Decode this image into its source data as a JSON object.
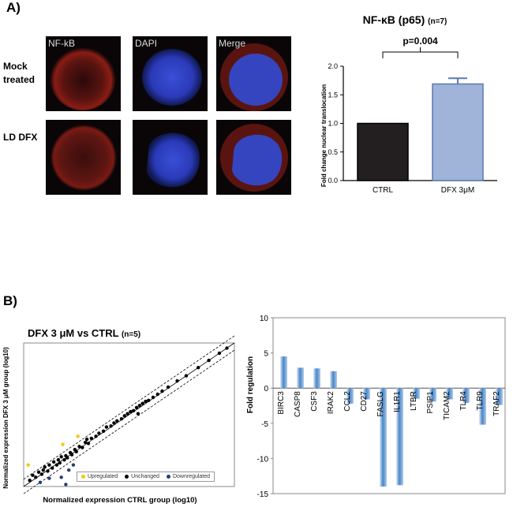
{
  "panel_a": {
    "label": "A)",
    "row_labels": [
      "Mock\ntreated",
      "LD DFX"
    ],
    "column_labels": [
      "NF-kB",
      "DAPI",
      "Merge"
    ]
  },
  "panel_b": {
    "label": "B)"
  },
  "colors": {
    "ctrl_bar": "#231f20",
    "dfx_bar": "#9fb4d8",
    "yellow": "#f5c518",
    "black": "#000000",
    "navy": "#283a7a",
    "blue_bar": "#4a86c8"
  },
  "chart_data": [
    {
      "type": "bar",
      "title": "NF-κB (p65)",
      "subtitle": "(n=7)",
      "categories": [
        "CTRL",
        "DFX 3μM"
      ],
      "values": [
        1.0,
        1.69
      ],
      "error": [
        0,
        0.1
      ],
      "ylabel": "Fold change nuclear translocation",
      "ylim": [
        0,
        2.0
      ],
      "yticks": [
        "0.0",
        "0.5",
        "1.0",
        "1.5",
        "2.0"
      ],
      "annotation": "p=0.004"
    },
    {
      "type": "scatter",
      "title": "DFX 3 μM vs CTRL",
      "subtitle": "(n=5)",
      "xlabel": "Normalized expression CTRL group (log10)",
      "ylabel": "Normalized expression DFX 3 μM group (log10)",
      "xlim": [
        -7,
        0
      ],
      "ylim": [
        -7,
        0
      ],
      "legend": [
        "Upregulated",
        "Unchanged",
        "Downregulated"
      ],
      "series": [
        {
          "name": "Upregulated",
          "points": [
            [
              -6.85,
              -5.95
            ],
            [
              -5.7,
              -4.95
            ],
            [
              -5.2,
              -4.55
            ]
          ]
        },
        {
          "name": "Unchanged",
          "points": [
            [
              -6.8,
              -6.7
            ],
            [
              -6.7,
              -6.45
            ],
            [
              -6.6,
              -6.55
            ],
            [
              -6.5,
              -6.3
            ],
            [
              -6.4,
              -6.4
            ],
            [
              -6.35,
              -6.2
            ],
            [
              -6.3,
              -6.05
            ],
            [
              -6.2,
              -6.25
            ],
            [
              -6.15,
              -5.95
            ],
            [
              -6.05,
              -6.1
            ],
            [
              -6.0,
              -5.8
            ],
            [
              -5.9,
              -5.95
            ],
            [
              -5.85,
              -5.7
            ],
            [
              -5.8,
              -5.85
            ],
            [
              -5.75,
              -5.55
            ],
            [
              -5.65,
              -5.7
            ],
            [
              -5.6,
              -5.5
            ],
            [
              -5.55,
              -5.6
            ],
            [
              -5.45,
              -5.35
            ],
            [
              -5.4,
              -5.45
            ],
            [
              -5.3,
              -5.2
            ],
            [
              -5.25,
              -5.3
            ],
            [
              -5.15,
              -5.05
            ],
            [
              -5.05,
              -5.1
            ],
            [
              -4.95,
              -4.85
            ],
            [
              -4.85,
              -4.9
            ],
            [
              -4.75,
              -4.65
            ],
            [
              -4.6,
              -4.55
            ],
            [
              -4.5,
              -4.4
            ],
            [
              -4.35,
              -4.3
            ],
            [
              -4.25,
              -4.1
            ],
            [
              -4.1,
              -4.05
            ],
            [
              -4.0,
              -3.9
            ],
            [
              -3.9,
              -3.8
            ],
            [
              -3.75,
              -3.7
            ],
            [
              -3.65,
              -3.55
            ],
            [
              -3.55,
              -3.45
            ],
            [
              -3.45,
              -3.35
            ],
            [
              -3.35,
              -3.3
            ],
            [
              -3.25,
              -3.15
            ],
            [
              -3.15,
              -3.05
            ],
            [
              -3.05,
              -2.95
            ],
            [
              -2.95,
              -2.85
            ],
            [
              -2.85,
              -2.8
            ],
            [
              -2.7,
              -2.65
            ],
            [
              -2.55,
              -2.5
            ],
            [
              -2.4,
              -2.35
            ],
            [
              -2.2,
              -2.15
            ],
            [
              -1.9,
              -1.85
            ],
            [
              -1.6,
              -1.6
            ],
            [
              -1.2,
              -1.2
            ],
            [
              -0.85,
              -0.85
            ],
            [
              -0.5,
              -0.5
            ],
            [
              -0.25,
              -0.25
            ],
            [
              -3.2,
              -3.45
            ],
            [
              -4.9,
              -4.7
            ]
          ]
        },
        {
          "name": "Downregulated",
          "points": [
            [
              -6.45,
              -6.8
            ],
            [
              -6.15,
              -6.6
            ],
            [
              -5.75,
              -6.55
            ],
            [
              -5.5,
              -6.2
            ],
            [
              -5.35,
              -5.95
            ],
            [
              -5.6,
              -6.9
            ]
          ]
        }
      ]
    },
    {
      "type": "bar",
      "ylabel": "Fold regulation",
      "categories": [
        "BIRC3",
        "CASP8",
        "CSF3",
        "IRAK2",
        "CCL2",
        "CD27",
        "FASLG",
        "IL1R1",
        "LTBR",
        "PSIP1",
        "TICAM2",
        "TLR4",
        "TLR9",
        "TRAF2"
      ],
      "values": [
        4.5,
        2.9,
        2.8,
        2.4,
        -2.2,
        -1.6,
        -14.0,
        -13.8,
        -1.5,
        -1.9,
        -1.6,
        -2.1,
        -5.2,
        -2.4
      ],
      "ylim": [
        -15,
        10
      ],
      "yticks": [
        "10",
        "5",
        "0",
        "-5",
        "-10",
        "-15"
      ]
    }
  ]
}
